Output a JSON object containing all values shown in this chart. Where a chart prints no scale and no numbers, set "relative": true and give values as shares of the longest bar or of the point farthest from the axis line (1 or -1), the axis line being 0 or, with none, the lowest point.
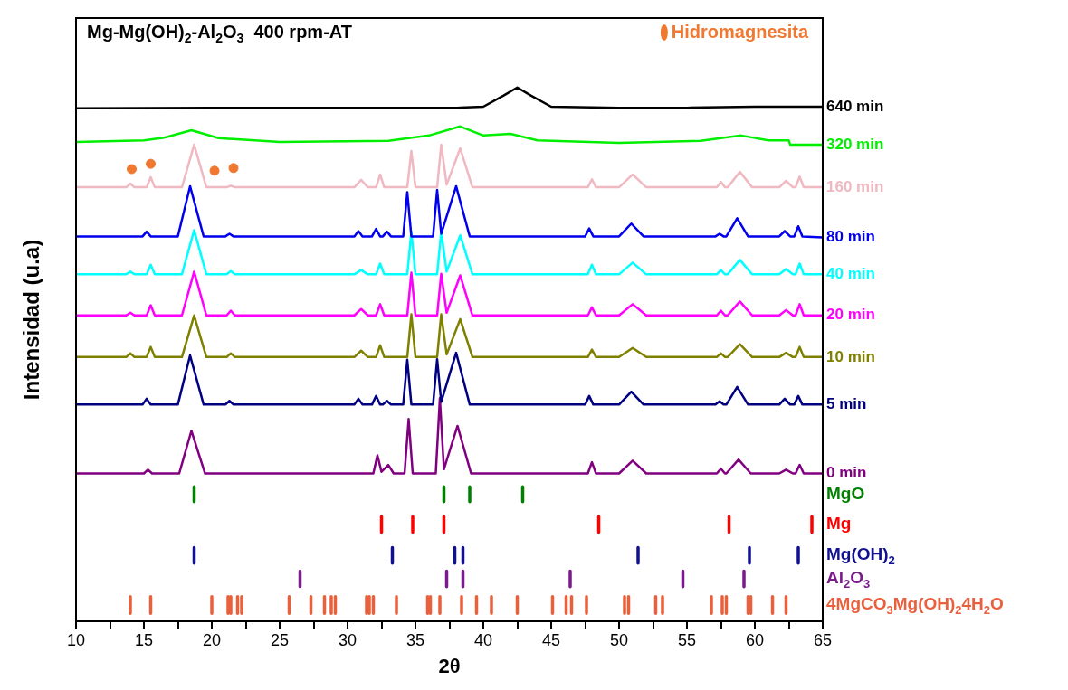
{
  "chart_data": {
    "type": "line",
    "title": "Mg-Mg(OH)$_{2}$-Al$_{2}$O$_{3}$  400 rpm-AT",
    "xlabel": "2θ",
    "ylabel": "Intensidad (u.a)",
    "relative": true,
    "legend": "top right",
    "xlim": [
      10,
      65
    ],
    "xticks": [
      10,
      {
        "value": 12.5,
        "label": null
      },
      15,
      {
        "value": 17.5,
        "label": null
      },
      20,
      {
        "value": 22.5,
        "label": null
      },
      25,
      {
        "value": 27.5,
        "label": null
      },
      30,
      {
        "value": 32.5,
        "label": null
      },
      35,
      {
        "value": 37.5,
        "label": null
      },
      40,
      {
        "value": 42.5,
        "label": null
      },
      45,
      {
        "value": 47.5,
        "label": null
      },
      50,
      {
        "value": 52.5,
        "label": null
      },
      55,
      {
        "value": 57.5,
        "label": null
      },
      60,
      {
        "value": 62.5,
        "label": null
      },
      65
    ],
    "series": [
      {
        "name": "640 min",
        "color": "#000000",
        "x": [
          10,
          20,
          30,
          38,
          40,
          41.5,
          42.5,
          43.5,
          45,
          50,
          55,
          60,
          65
        ],
        "values": [
          0.961,
          0.962,
          0.962,
          0.962,
          0.964,
          0.985,
          1.0,
          0.985,
          0.964,
          0.962,
          0.962,
          0.964,
          0.964
        ]
      },
      {
        "name": "320 min",
        "color": "#00ee00",
        "x": [
          10,
          15,
          16.5,
          18.5,
          20.5,
          25,
          33,
          36,
          38.3,
          40,
          42,
          44,
          50,
          56,
          59,
          61,
          62.5,
          62.6,
          65
        ],
        "values": [
          0.898,
          0.901,
          0.906,
          0.92,
          0.905,
          0.898,
          0.9,
          0.91,
          0.927,
          0.91,
          0.913,
          0.901,
          0.896,
          0.9,
          0.91,
          0.901,
          0.901,
          0.893,
          0.893
        ]
      },
      {
        "name": "160 min",
        "color": "#f0b8c0",
        "x": [
          10,
          13.7,
          14,
          14.3,
          15.2,
          15.5,
          15.8,
          17.8,
          18.7,
          19.6,
          21.1,
          21.4,
          21.7,
          30.5,
          31,
          31.5,
          32.1,
          32.4,
          32.7,
          34.4,
          34.7,
          35,
          36.6,
          36.9,
          37.3,
          38.3,
          39.2,
          47.7,
          48,
          48.3,
          50,
          51,
          52,
          57.2,
          57.5,
          57.8,
          58,
          58.9,
          59.8,
          61.8,
          62.3,
          62.8,
          63,
          63.3,
          63.6,
          65
        ],
        "values": [
          0.813,
          0.813,
          0.82,
          0.813,
          0.813,
          0.832,
          0.813,
          0.813,
          0.893,
          0.813,
          0.813,
          0.816,
          0.813,
          0.813,
          0.827,
          0.813,
          0.813,
          0.837,
          0.813,
          0.813,
          0.881,
          0.813,
          0.813,
          0.893,
          0.818,
          0.886,
          0.813,
          0.813,
          0.828,
          0.813,
          0.813,
          0.837,
          0.813,
          0.813,
          0.823,
          0.813,
          0.813,
          0.842,
          0.813,
          0.813,
          0.825,
          0.813,
          0.813,
          0.833,
          0.813,
          0.813
        ]
      },
      {
        "name": "80 min",
        "color": "#0000ee",
        "x": [
          10,
          14.9,
          15.2,
          15.5,
          17.5,
          18.4,
          19.4,
          21,
          21.3,
          21.6,
          30.5,
          30.8,
          31.1,
          31.8,
          32.1,
          32.4,
          32.6,
          32.9,
          33.2,
          34.1,
          34.4,
          34.7,
          36.3,
          36.6,
          36.9,
          38,
          39,
          47.5,
          47.8,
          48.1,
          50,
          50.9,
          51.8,
          57.1,
          57.4,
          57.7,
          57.9,
          58.7,
          59.5,
          61.8,
          62.2,
          62.6,
          62.9,
          63.2,
          63.5,
          65
        ],
        "values": [
          0.721,
          0.721,
          0.73,
          0.721,
          0.721,
          0.815,
          0.721,
          0.721,
          0.726,
          0.721,
          0.721,
          0.731,
          0.721,
          0.721,
          0.735,
          0.721,
          0.721,
          0.73,
          0.721,
          0.721,
          0.804,
          0.721,
          0.721,
          0.808,
          0.726,
          0.815,
          0.721,
          0.721,
          0.736,
          0.721,
          0.721,
          0.745,
          0.721,
          0.721,
          0.726,
          0.721,
          0.721,
          0.755,
          0.721,
          0.721,
          0.731,
          0.721,
          0.721,
          0.74,
          0.721,
          0.719
        ]
      },
      {
        "name": "40 min",
        "color": "#00ffff",
        "x": [
          10,
          13.7,
          14,
          14.3,
          15.2,
          15.5,
          15.8,
          17.8,
          18.7,
          19.6,
          21.1,
          21.4,
          21.7,
          30.5,
          31,
          31.5,
          32.1,
          32.4,
          32.7,
          34.4,
          34.7,
          35,
          36.6,
          36.9,
          37.3,
          38.3,
          39.2,
          47.7,
          48,
          48.3,
          50,
          51,
          52,
          57.2,
          57.5,
          57.8,
          58,
          58.9,
          59.8,
          61.8,
          62.3,
          62.8,
          63,
          63.3,
          63.6,
          65
        ],
        "values": [
          0.65,
          0.65,
          0.655,
          0.65,
          0.65,
          0.668,
          0.65,
          0.65,
          0.733,
          0.65,
          0.65,
          0.656,
          0.65,
          0.65,
          0.658,
          0.65,
          0.65,
          0.67,
          0.65,
          0.65,
          0.73,
          0.65,
          0.65,
          0.73,
          0.655,
          0.723,
          0.65,
          0.65,
          0.668,
          0.65,
          0.65,
          0.672,
          0.65,
          0.65,
          0.658,
          0.65,
          0.65,
          0.677,
          0.65,
          0.65,
          0.66,
          0.65,
          0.65,
          0.67,
          0.65,
          0.65
        ]
      },
      {
        "name": "20 min",
        "color": "#ff00ff",
        "x": [
          10,
          13.7,
          14,
          14.3,
          15.2,
          15.5,
          15.8,
          17.8,
          18.7,
          19.6,
          21.1,
          21.4,
          21.7,
          30.5,
          31,
          31.5,
          32.1,
          32.4,
          32.7,
          34.4,
          34.7,
          35,
          36.6,
          36.9,
          37.3,
          38.3,
          39.2,
          47.7,
          48,
          48.3,
          50,
          51,
          52,
          57.2,
          57.5,
          57.8,
          58,
          58.9,
          59.8,
          61.8,
          62.3,
          62.8,
          63,
          63.3,
          63.6,
          65
        ],
        "values": [
          0.573,
          0.573,
          0.578,
          0.573,
          0.573,
          0.592,
          0.573,
          0.573,
          0.655,
          0.573,
          0.573,
          0.582,
          0.573,
          0.573,
          0.585,
          0.573,
          0.573,
          0.594,
          0.573,
          0.573,
          0.653,
          0.573,
          0.573,
          0.651,
          0.578,
          0.648,
          0.573,
          0.573,
          0.588,
          0.573,
          0.573,
          0.594,
          0.573,
          0.573,
          0.582,
          0.573,
          0.573,
          0.599,
          0.573,
          0.573,
          0.583,
          0.573,
          0.573,
          0.594,
          0.573,
          0.573
        ]
      },
      {
        "name": "10 min",
        "color": "#808000",
        "x": [
          10,
          13.7,
          14,
          14.3,
          15.2,
          15.5,
          15.8,
          17.8,
          18.7,
          19.6,
          21.1,
          21.4,
          21.7,
          30.5,
          31,
          31.5,
          32.1,
          32.4,
          32.7,
          34.4,
          34.7,
          35,
          36.6,
          36.9,
          37.3,
          38.3,
          39.2,
          47.7,
          48,
          48.3,
          50,
          51,
          52,
          57.2,
          57.5,
          57.8,
          58,
          58.9,
          59.8,
          61.8,
          62.3,
          62.8,
          63,
          63.3,
          63.6,
          65
        ],
        "values": [
          0.495,
          0.495,
          0.502,
          0.495,
          0.495,
          0.514,
          0.495,
          0.495,
          0.573,
          0.495,
          0.495,
          0.502,
          0.495,
          0.495,
          0.507,
          0.495,
          0.495,
          0.517,
          0.495,
          0.495,
          0.575,
          0.495,
          0.495,
          0.575,
          0.5,
          0.566,
          0.495,
          0.495,
          0.509,
          0.495,
          0.495,
          0.512,
          0.495,
          0.495,
          0.502,
          0.495,
          0.495,
          0.519,
          0.495,
          0.495,
          0.503,
          0.495,
          0.495,
          0.514,
          0.495,
          0.495
        ]
      },
      {
        "name": "5 min",
        "color": "#000080",
        "x": [
          10,
          14.9,
          15.2,
          15.5,
          17.5,
          18.4,
          19.4,
          21,
          21.3,
          21.6,
          30.5,
          30.8,
          31.1,
          31.8,
          32.1,
          32.4,
          32.6,
          32.9,
          33.2,
          34.1,
          34.4,
          34.7,
          36.3,
          36.6,
          36.9,
          38,
          39,
          47.5,
          47.8,
          48.1,
          50,
          50.9,
          51.8,
          57.1,
          57.4,
          57.7,
          57.9,
          58.7,
          59.5,
          61.8,
          62.2,
          62.6,
          62.9,
          63.2,
          63.5,
          65
        ],
        "values": [
          0.406,
          0.406,
          0.417,
          0.406,
          0.406,
          0.498,
          0.406,
          0.406,
          0.413,
          0.406,
          0.406,
          0.417,
          0.406,
          0.406,
          0.422,
          0.406,
          0.406,
          0.413,
          0.406,
          0.406,
          0.49,
          0.406,
          0.406,
          0.491,
          0.411,
          0.503,
          0.406,
          0.406,
          0.422,
          0.406,
          0.406,
          0.43,
          0.406,
          0.406,
          0.412,
          0.406,
          0.406,
          0.439,
          0.406,
          0.406,
          0.417,
          0.406,
          0.406,
          0.422,
          0.406,
          0.406
        ]
      },
      {
        "name": "0 min",
        "color": "#800080",
        "x": [
          10,
          15,
          15.3,
          15.6,
          17.6,
          18.5,
          19.5,
          31.9,
          32.2,
          32.5,
          33,
          33.4,
          34.2,
          34.5,
          34.8,
          36.5,
          36.8,
          37.1,
          38.1,
          39.1,
          47.7,
          48,
          48.3,
          50,
          51,
          52,
          57.2,
          57.5,
          57.8,
          57.9,
          58.8,
          59.7,
          61.8,
          62.3,
          62.8,
          63,
          63.3,
          63.6,
          65
        ],
        "values": [
          0.277,
          0.277,
          0.284,
          0.277,
          0.277,
          0.357,
          0.277,
          0.277,
          0.311,
          0.28,
          0.293,
          0.277,
          0.277,
          0.379,
          0.277,
          0.277,
          0.418,
          0.285,
          0.366,
          0.277,
          0.277,
          0.298,
          0.277,
          0.277,
          0.301,
          0.277,
          0.277,
          0.286,
          0.277,
          0.277,
          0.303,
          0.277,
          0.277,
          0.284,
          0.277,
          0.277,
          0.293,
          0.277,
          0.277
        ]
      },
      {
        "name": "Hidromagnesita",
        "type": "scatter",
        "marker": "circle",
        "color": "#f07830",
        "x": [
          14.1,
          15.5,
          20.2,
          21.6
        ],
        "values": [
          0.847,
          0.857,
          0.844,
          0.849
        ]
      },
      {
        "name": "MgO",
        "color": "#008000",
        "x": [
          18.7,
          18.7,
          null,
          37.1,
          37.1,
          null,
          39.0,
          39.0,
          null,
          42.9,
          42.9
        ],
        "values": [
          0.224,
          0.252,
          null,
          0.224,
          0.252,
          null,
          0.224,
          0.252,
          null,
          0.224,
          0.252
        ]
      },
      {
        "name": "Mg",
        "color": "#ff0000",
        "x": [
          32.5,
          32.5,
          null,
          34.8,
          34.8,
          null,
          37.1,
          37.1,
          null,
          48.5,
          48.5,
          null,
          58.1,
          58.1,
          null,
          64.2,
          64.2
        ],
        "values": [
          0.167,
          0.196,
          null,
          0.167,
          0.196,
          null,
          0.167,
          0.196,
          null,
          0.167,
          0.196,
          null,
          0.167,
          0.196,
          null,
          0.167,
          0.196
        ]
      },
      {
        "name": "Mg(OH)$_{2}$",
        "color": "#101090",
        "x": [
          18.7,
          18.7,
          null,
          33.3,
          33.3,
          null,
          37.9,
          37.9,
          null,
          38.5,
          38.5,
          null,
          51.4,
          51.4,
          null,
          59.6,
          59.6,
          null,
          63.2,
          63.2
        ],
        "values": [
          0.109,
          0.138,
          null,
          0.109,
          0.138,
          null,
          0.109,
          0.138,
          null,
          0.109,
          0.138,
          null,
          0.109,
          0.138,
          null,
          0.109,
          0.138,
          null,
          0.109,
          0.138
        ]
      },
      {
        "name": "Al$_{2}$O$_{3}$",
        "color": "#7a1a8c",
        "x": [
          26.5,
          26.5,
          null,
          37.3,
          37.3,
          null,
          38.5,
          38.5,
          null,
          46.4,
          46.4,
          null,
          54.7,
          54.7,
          null,
          59.2,
          59.2
        ],
        "values": [
          0.065,
          0.094,
          null,
          0.065,
          0.094,
          null,
          0.065,
          0.094,
          null,
          0.065,
          0.094,
          null,
          0.065,
          0.094,
          null,
          0.065,
          0.094
        ]
      },
      {
        "name": "4MgCO$_{3}$Mg(OH)$_{2}$4H$_{2}$O",
        "color": "#e8603c",
        "x": [
          14.0,
          14.0,
          null,
          15.5,
          15.5,
          null,
          20.0,
          20.0,
          null,
          21.2,
          21.2,
          null,
          21.4,
          21.4,
          null,
          21.9,
          21.9,
          null,
          22.2,
          22.2,
          null,
          25.7,
          25.7,
          null,
          27.3,
          27.3,
          null,
          28.3,
          28.3,
          null,
          28.8,
          28.8,
          null,
          29.1,
          29.1,
          null,
          31.4,
          31.4,
          null,
          31.6,
          31.6,
          null,
          31.9,
          31.9,
          null,
          33.6,
          33.6,
          null,
          35.9,
          35.9,
          null,
          36.1,
          36.1,
          null,
          36.8,
          36.8,
          null,
          38.4,
          38.4,
          null,
          39.5,
          39.5,
          null,
          40.6,
          40.6,
          null,
          42.5,
          42.5,
          null,
          45.1,
          45.1,
          null,
          46.1,
          46.1,
          null,
          46.5,
          46.5,
          null,
          47.6,
          47.6,
          null,
          50.4,
          50.4,
          null,
          50.7,
          50.7,
          null,
          52.7,
          52.7,
          null,
          53.2,
          53.2,
          null,
          56.8,
          56.8,
          null,
          57.6,
          57.6,
          null,
          57.9,
          57.9,
          null,
          59.5,
          59.5,
          null,
          59.7,
          59.7,
          null,
          61.3,
          61.3,
          null,
          62.3,
          62.3
        ],
        "values": [
          0.015,
          0.046,
          null,
          0.015,
          0.046,
          null,
          0.015,
          0.046,
          null,
          0.015,
          0.046,
          null,
          0.015,
          0.046,
          null,
          0.015,
          0.046,
          null,
          0.015,
          0.046,
          null,
          0.015,
          0.046,
          null,
          0.015,
          0.046,
          null,
          0.015,
          0.046,
          null,
          0.015,
          0.046,
          null,
          0.015,
          0.046,
          null,
          0.015,
          0.046,
          null,
          0.015,
          0.046,
          null,
          0.015,
          0.046,
          null,
          0.015,
          0.046,
          null,
          0.015,
          0.046,
          null,
          0.015,
          0.046,
          null,
          0.015,
          0.046,
          null,
          0.015,
          0.046,
          null,
          0.015,
          0.046,
          null,
          0.015,
          0.046,
          null,
          0.015,
          0.046,
          null,
          0.015,
          0.046,
          null,
          0.015,
          0.046,
          null,
          0.015,
          0.046,
          null,
          0.015,
          0.046,
          null,
          0.015,
          0.046,
          null,
          0.015,
          0.046,
          null,
          0.015,
          0.046,
          null,
          0.015,
          0.046,
          null,
          0.015,
          0.046,
          null,
          0.015,
          0.046,
          null,
          0.015,
          0.046,
          null,
          0.015,
          0.046,
          null,
          0.015,
          0.046,
          null,
          0.015,
          0.046,
          null,
          0.015,
          0.046
        ]
      }
    ]
  }
}
